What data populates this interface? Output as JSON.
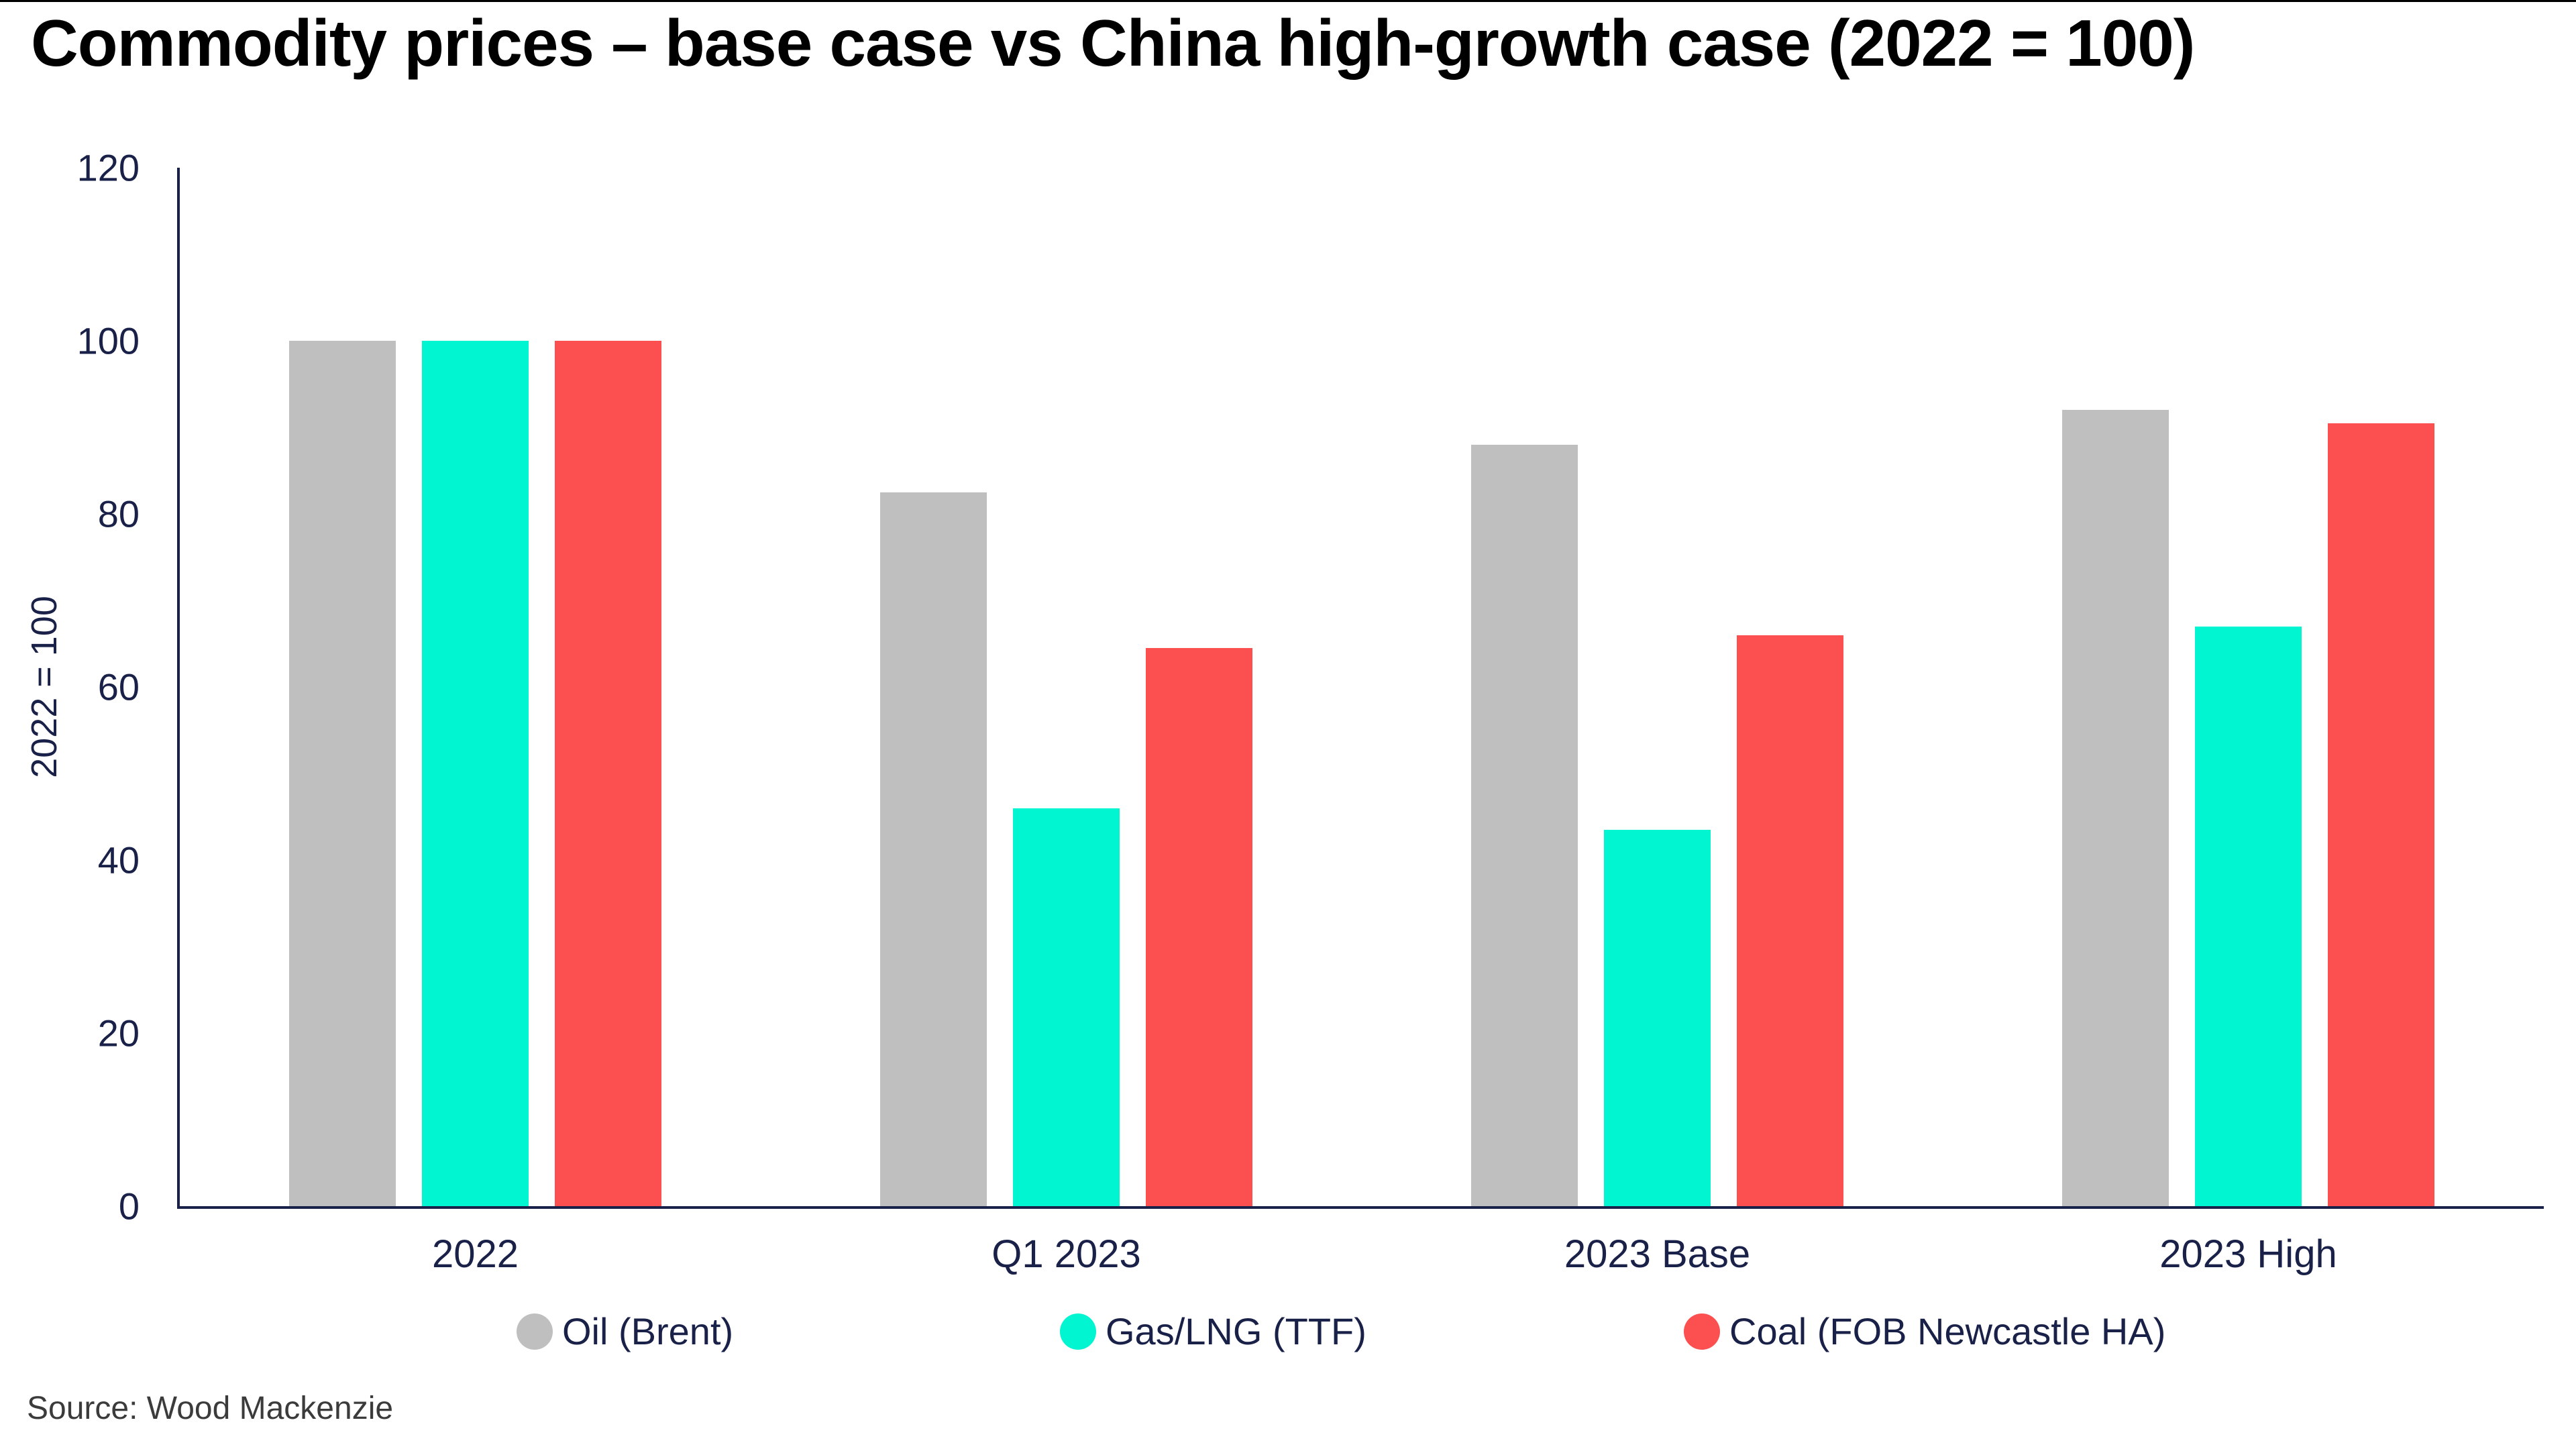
{
  "title": "Commodity prices – base case vs China high-growth case (2022 = 100)",
  "source_note": "Source: Wood Mackenzie",
  "colors": {
    "text_navy": "#1A2148",
    "axis": "#1A2148",
    "title": "#000000",
    "source_gray": "#3B3B3B",
    "background": "#FFFFFF"
  },
  "chart_data": {
    "type": "bar",
    "title": "Commodity prices – base case vs China high-growth case (2022 = 100)",
    "categories": [
      "2022",
      "Q1 2023",
      "2023 Base",
      "2023 High"
    ],
    "series": [
      {
        "name": "Oil (Brent)",
        "color": "#BFBFBF",
        "values": [
          100,
          82.5,
          88,
          92
        ]
      },
      {
        "name": "Gas/LNG (TTF)",
        "color": "#00F5D0",
        "values": [
          100,
          46,
          43.5,
          67
        ]
      },
      {
        "name": "Coal (FOB Newcastle HA)",
        "color": "#FC4F4F",
        "values": [
          100,
          64.5,
          66,
          90.5
        ]
      }
    ],
    "xlabel": "",
    "ylabel": "2022 = 100",
    "ylim": [
      0,
      120
    ],
    "yticks": [
      0,
      20,
      40,
      60,
      80,
      100,
      120
    ],
    "grid": false,
    "legend_position": "bottom"
  }
}
